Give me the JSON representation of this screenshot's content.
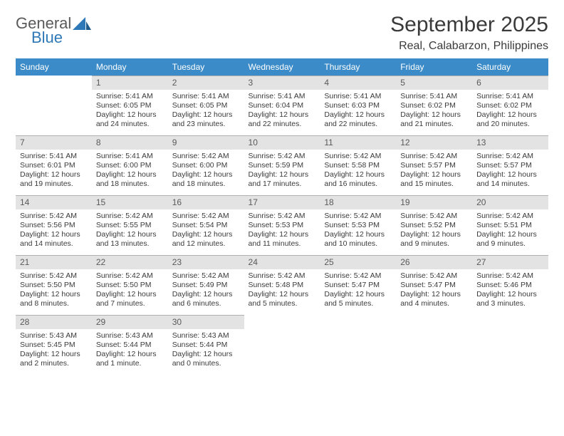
{
  "logo": {
    "line1": "General",
    "line2": "Blue"
  },
  "title": "September 2025",
  "location": "Real, Calabarzon, Philippines",
  "weekday_header_bg": "#3b8bc8",
  "weekday_header_fg": "#ffffff",
  "daynum_bar_bg": "#e3e3e3",
  "weekdays": [
    "Sunday",
    "Monday",
    "Tuesday",
    "Wednesday",
    "Thursday",
    "Friday",
    "Saturday"
  ],
  "weeks": [
    [
      null,
      {
        "n": "1",
        "sr": "Sunrise: 5:41 AM",
        "ss": "Sunset: 6:05 PM",
        "dl": "Daylight: 12 hours and 24 minutes."
      },
      {
        "n": "2",
        "sr": "Sunrise: 5:41 AM",
        "ss": "Sunset: 6:05 PM",
        "dl": "Daylight: 12 hours and 23 minutes."
      },
      {
        "n": "3",
        "sr": "Sunrise: 5:41 AM",
        "ss": "Sunset: 6:04 PM",
        "dl": "Daylight: 12 hours and 22 minutes."
      },
      {
        "n": "4",
        "sr": "Sunrise: 5:41 AM",
        "ss": "Sunset: 6:03 PM",
        "dl": "Daylight: 12 hours and 22 minutes."
      },
      {
        "n": "5",
        "sr": "Sunrise: 5:41 AM",
        "ss": "Sunset: 6:02 PM",
        "dl": "Daylight: 12 hours and 21 minutes."
      },
      {
        "n": "6",
        "sr": "Sunrise: 5:41 AM",
        "ss": "Sunset: 6:02 PM",
        "dl": "Daylight: 12 hours and 20 minutes."
      }
    ],
    [
      {
        "n": "7",
        "sr": "Sunrise: 5:41 AM",
        "ss": "Sunset: 6:01 PM",
        "dl": "Daylight: 12 hours and 19 minutes."
      },
      {
        "n": "8",
        "sr": "Sunrise: 5:41 AM",
        "ss": "Sunset: 6:00 PM",
        "dl": "Daylight: 12 hours and 18 minutes."
      },
      {
        "n": "9",
        "sr": "Sunrise: 5:42 AM",
        "ss": "Sunset: 6:00 PM",
        "dl": "Daylight: 12 hours and 18 minutes."
      },
      {
        "n": "10",
        "sr": "Sunrise: 5:42 AM",
        "ss": "Sunset: 5:59 PM",
        "dl": "Daylight: 12 hours and 17 minutes."
      },
      {
        "n": "11",
        "sr": "Sunrise: 5:42 AM",
        "ss": "Sunset: 5:58 PM",
        "dl": "Daylight: 12 hours and 16 minutes."
      },
      {
        "n": "12",
        "sr": "Sunrise: 5:42 AM",
        "ss": "Sunset: 5:57 PM",
        "dl": "Daylight: 12 hours and 15 minutes."
      },
      {
        "n": "13",
        "sr": "Sunrise: 5:42 AM",
        "ss": "Sunset: 5:57 PM",
        "dl": "Daylight: 12 hours and 14 minutes."
      }
    ],
    [
      {
        "n": "14",
        "sr": "Sunrise: 5:42 AM",
        "ss": "Sunset: 5:56 PM",
        "dl": "Daylight: 12 hours and 14 minutes."
      },
      {
        "n": "15",
        "sr": "Sunrise: 5:42 AM",
        "ss": "Sunset: 5:55 PM",
        "dl": "Daylight: 12 hours and 13 minutes."
      },
      {
        "n": "16",
        "sr": "Sunrise: 5:42 AM",
        "ss": "Sunset: 5:54 PM",
        "dl": "Daylight: 12 hours and 12 minutes."
      },
      {
        "n": "17",
        "sr": "Sunrise: 5:42 AM",
        "ss": "Sunset: 5:53 PM",
        "dl": "Daylight: 12 hours and 11 minutes."
      },
      {
        "n": "18",
        "sr": "Sunrise: 5:42 AM",
        "ss": "Sunset: 5:53 PM",
        "dl": "Daylight: 12 hours and 10 minutes."
      },
      {
        "n": "19",
        "sr": "Sunrise: 5:42 AM",
        "ss": "Sunset: 5:52 PM",
        "dl": "Daylight: 12 hours and 9 minutes."
      },
      {
        "n": "20",
        "sr": "Sunrise: 5:42 AM",
        "ss": "Sunset: 5:51 PM",
        "dl": "Daylight: 12 hours and 9 minutes."
      }
    ],
    [
      {
        "n": "21",
        "sr": "Sunrise: 5:42 AM",
        "ss": "Sunset: 5:50 PM",
        "dl": "Daylight: 12 hours and 8 minutes."
      },
      {
        "n": "22",
        "sr": "Sunrise: 5:42 AM",
        "ss": "Sunset: 5:50 PM",
        "dl": "Daylight: 12 hours and 7 minutes."
      },
      {
        "n": "23",
        "sr": "Sunrise: 5:42 AM",
        "ss": "Sunset: 5:49 PM",
        "dl": "Daylight: 12 hours and 6 minutes."
      },
      {
        "n": "24",
        "sr": "Sunrise: 5:42 AM",
        "ss": "Sunset: 5:48 PM",
        "dl": "Daylight: 12 hours and 5 minutes."
      },
      {
        "n": "25",
        "sr": "Sunrise: 5:42 AM",
        "ss": "Sunset: 5:47 PM",
        "dl": "Daylight: 12 hours and 5 minutes."
      },
      {
        "n": "26",
        "sr": "Sunrise: 5:42 AM",
        "ss": "Sunset: 5:47 PM",
        "dl": "Daylight: 12 hours and 4 minutes."
      },
      {
        "n": "27",
        "sr": "Sunrise: 5:42 AM",
        "ss": "Sunset: 5:46 PM",
        "dl": "Daylight: 12 hours and 3 minutes."
      }
    ],
    [
      {
        "n": "28",
        "sr": "Sunrise: 5:43 AM",
        "ss": "Sunset: 5:45 PM",
        "dl": "Daylight: 12 hours and 2 minutes."
      },
      {
        "n": "29",
        "sr": "Sunrise: 5:43 AM",
        "ss": "Sunset: 5:44 PM",
        "dl": "Daylight: 12 hours and 1 minute."
      },
      {
        "n": "30",
        "sr": "Sunrise: 5:43 AM",
        "ss": "Sunset: 5:44 PM",
        "dl": "Daylight: 12 hours and 0 minutes."
      },
      null,
      null,
      null,
      null
    ]
  ]
}
